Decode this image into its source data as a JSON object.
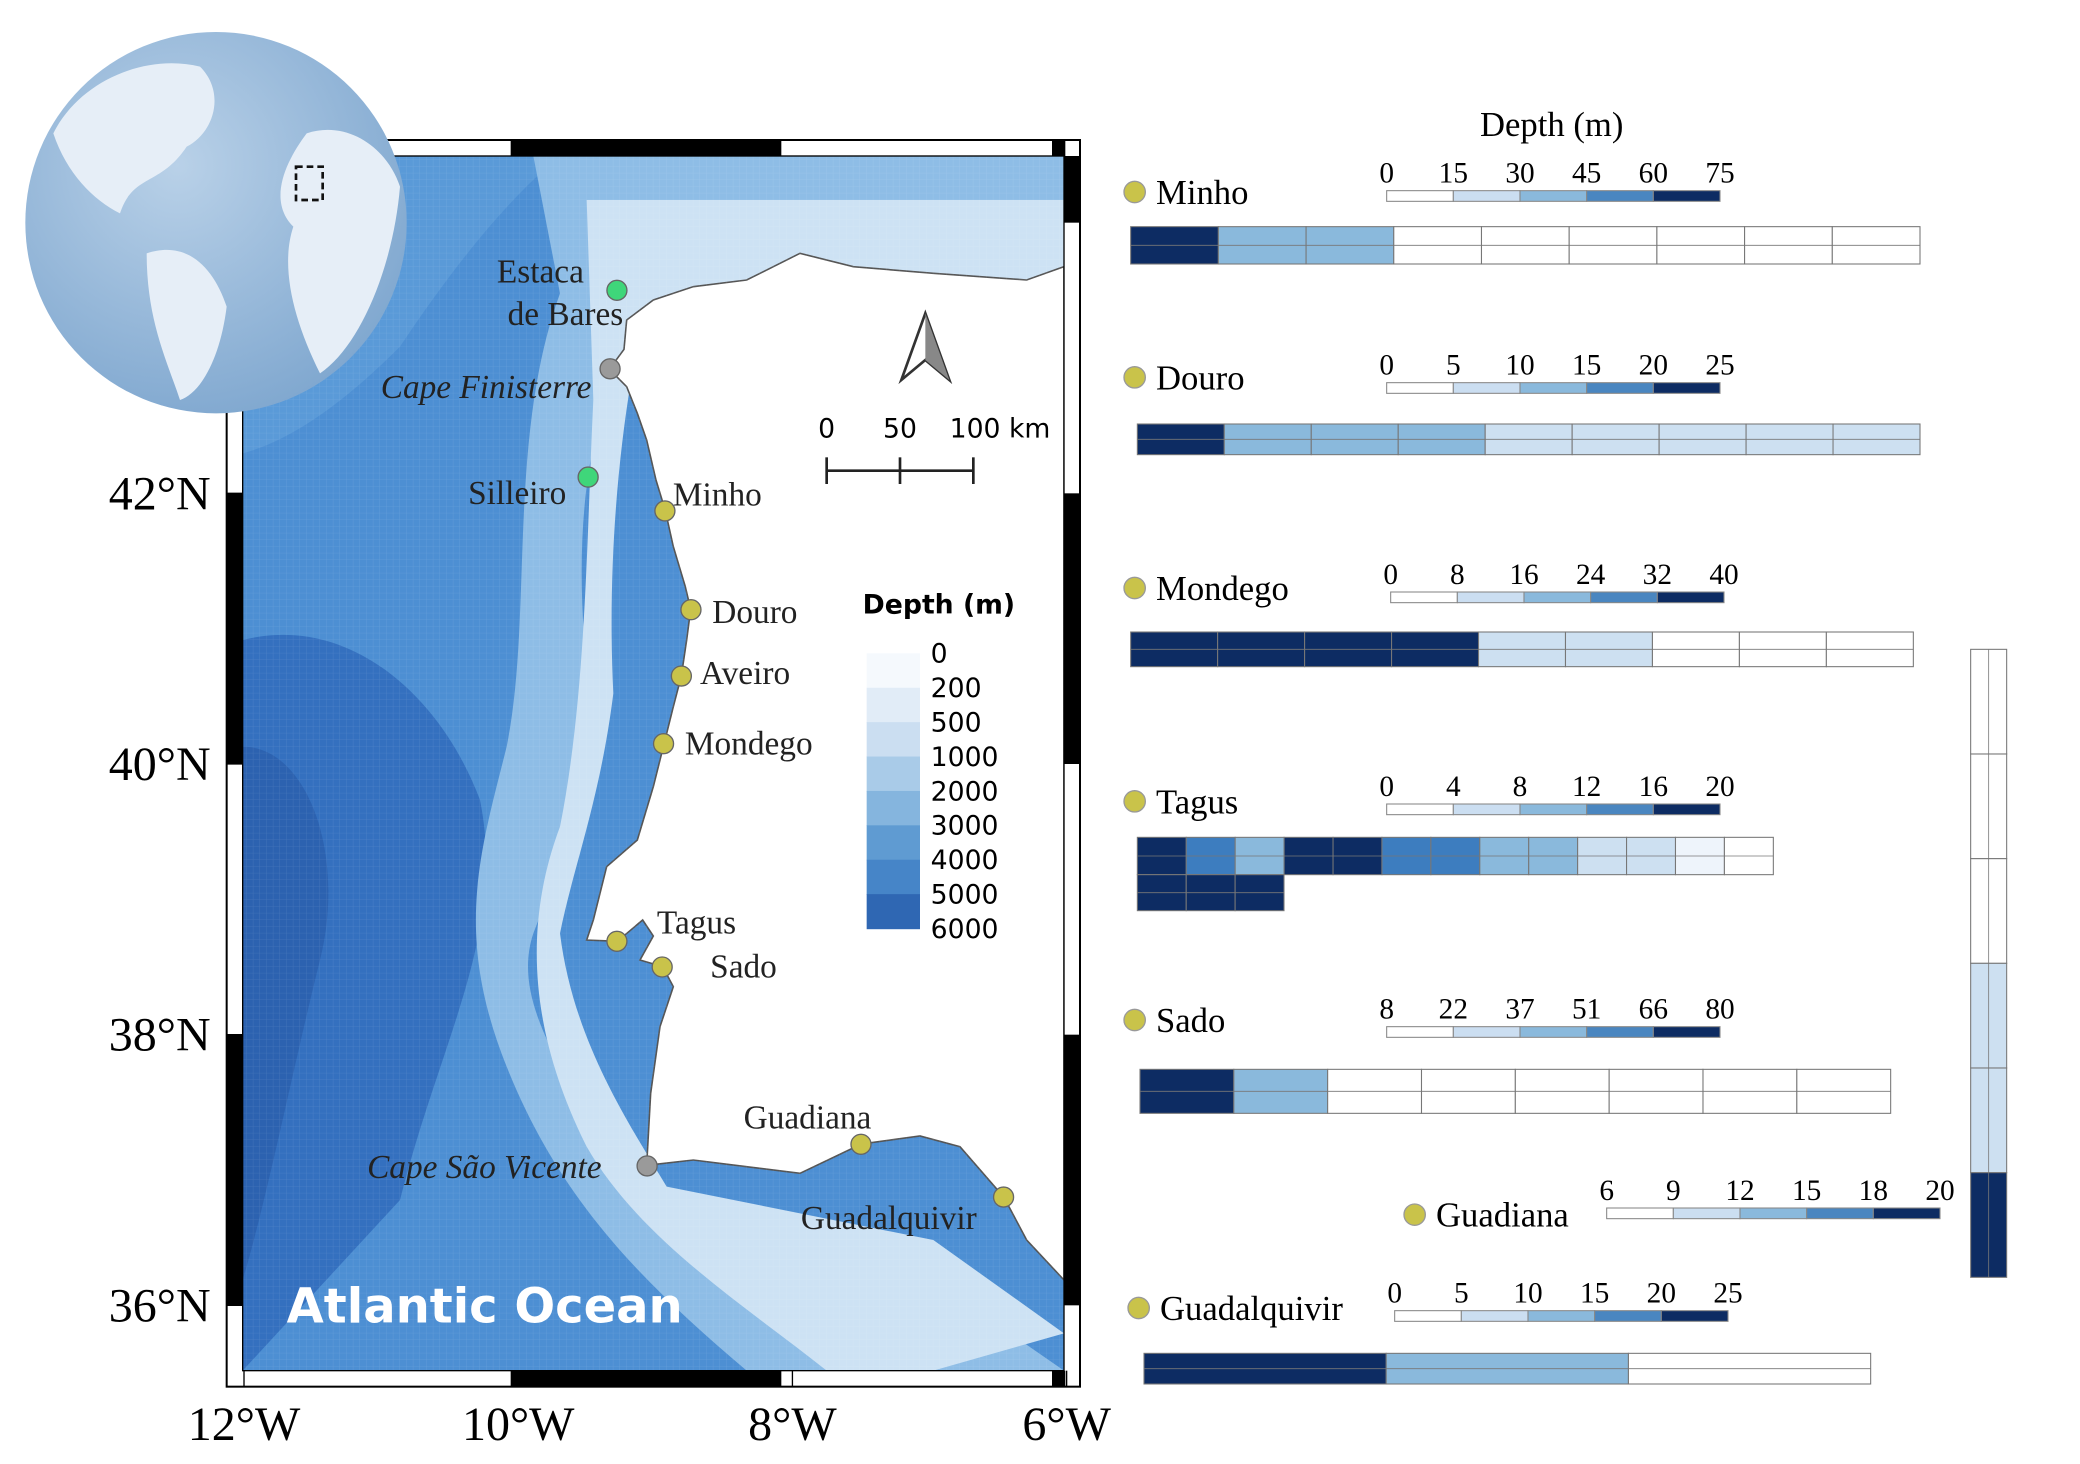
{
  "map": {
    "xlim": [
      -12.1,
      -5.9
    ],
    "ylim": [
      35.4,
      44.6
    ],
    "lat_ticks": [
      {
        "value": 42,
        "label": "42°N"
      },
      {
        "value": 40,
        "label": "40°N"
      },
      {
        "value": 38,
        "label": "38°N"
      },
      {
        "value": 36,
        "label": "36°N"
      }
    ],
    "lon_ticks": [
      {
        "value": -12,
        "label": "12°W"
      },
      {
        "value": -10,
        "label": "10°W"
      },
      {
        "value": -8,
        "label": "8°W"
      },
      {
        "value": -6,
        "label": "6°W"
      }
    ],
    "ocean_label": "Atlantic Ocean",
    "places": [
      {
        "label_lines": [
          "Estaca",
          "de Bares"
        ],
        "lon": -9.28,
        "lat": 43.5,
        "color": "#3fd67a",
        "italic": false
      },
      {
        "label_lines": [
          "Cape Finisterre"
        ],
        "lon": -9.33,
        "lat": 42.92,
        "color": "#9a9a9a",
        "italic": true
      },
      {
        "label_lines": [
          "Silleiro"
        ],
        "lon": -9.49,
        "lat": 42.12,
        "color": "#3fd67a",
        "italic": false
      },
      {
        "label_lines": [
          "Minho"
        ],
        "lon": -8.93,
        "lat": 41.87,
        "color": "#c9c34a",
        "italic": false
      },
      {
        "label_lines": [
          "Douro"
        ],
        "lon": -8.74,
        "lat": 41.14,
        "color": "#c9c34a",
        "italic": false
      },
      {
        "label_lines": [
          "Aveiro"
        ],
        "lon": -8.81,
        "lat": 40.65,
        "color": "#c9c34a",
        "italic": false
      },
      {
        "label_lines": [
          "Mondego"
        ],
        "lon": -8.94,
        "lat": 40.15,
        "color": "#c9c34a",
        "italic": false
      },
      {
        "label_lines": [
          "Tagus"
        ],
        "lon": -9.28,
        "lat": 38.69,
        "color": "#c9c34a",
        "italic": false
      },
      {
        "label_lines": [
          "Sado"
        ],
        "lon": -8.95,
        "lat": 38.5,
        "color": "#c9c34a",
        "italic": false
      },
      {
        "label_lines": [
          "Guadiana"
        ],
        "lon": -7.5,
        "lat": 37.19,
        "color": "#c9c34a",
        "italic": false
      },
      {
        "label_lines": [
          "Cape São Vicente"
        ],
        "lon": -9.06,
        "lat": 37.03,
        "color": "#9a9a9a",
        "italic": true
      },
      {
        "label_lines": [
          "Guadalquivir"
        ],
        "lon": -6.46,
        "lat": 36.8,
        "color": "#c9c34a",
        "italic": false
      }
    ],
    "scale_bar": {
      "ticks": [
        0,
        50,
        {
          "value": 100,
          "label": "100 km"
        }
      ]
    },
    "legend": {
      "title": "Depth (m)",
      "levels": [
        0,
        200,
        500,
        1000,
        2000,
        3000,
        4000,
        5000,
        6000
      ],
      "colors": [
        "#f5f9fd",
        "#e1ecf7",
        "#cbdef1",
        "#a9cbe8",
        "#85b5de",
        "#5f9bd2",
        "#4685c8",
        "#2f67b3"
      ]
    }
  },
  "panels": {
    "depth_title": "Depth  (m)",
    "scale_colors": [
      "#ffffff",
      "#cbdef1",
      "#8ab9dc",
      "#4a86c0",
      "#0d2c63"
    ],
    "estuaries": [
      {
        "name": "Minho",
        "scale_ticks": [
          0,
          15,
          30,
          45,
          60,
          75
        ]
      },
      {
        "name": "Douro",
        "scale_ticks": [
          0,
          5,
          10,
          15,
          20,
          25
        ]
      },
      {
        "name": "Mondego",
        "scale_ticks": [
          0,
          8,
          16,
          24,
          32,
          40
        ]
      },
      {
        "name": "Tagus",
        "scale_ticks": [
          0,
          4,
          8,
          12,
          16,
          20
        ]
      },
      {
        "name": "Sado",
        "scale_ticks": [
          8,
          22,
          37,
          51,
          66,
          80
        ]
      },
      {
        "name": "Guadiana",
        "scale_ticks": [
          6,
          9,
          12,
          15,
          18,
          20
        ]
      },
      {
        "name": "Guadalquivir",
        "scale_ticks": [
          0,
          5,
          10,
          15,
          20,
          25
        ]
      }
    ]
  }
}
